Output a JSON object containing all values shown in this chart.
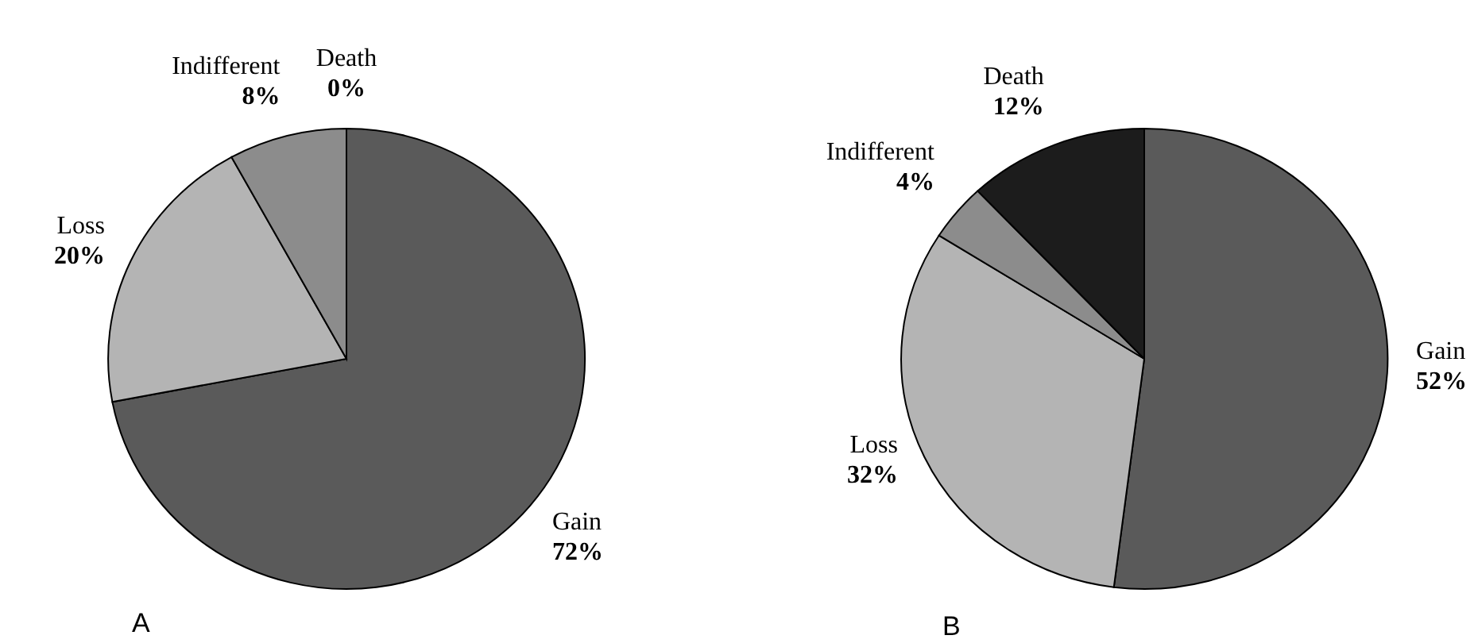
{
  "chart_data": [
    {
      "type": "pie",
      "title": "A",
      "categories": [
        "Gain",
        "Loss",
        "Indifferent",
        "Death"
      ],
      "values": [
        72,
        20,
        8,
        0
      ],
      "value_labels": [
        "72%",
        "20%",
        "8%",
        "0%"
      ],
      "colors": [
        "#5a5a5a",
        "#b4b4b4",
        "#8c8c8c",
        "#1c1c1c"
      ]
    },
    {
      "type": "pie",
      "title": "B",
      "categories": [
        "Gain",
        "Loss",
        "Indifferent",
        "Death"
      ],
      "values": [
        52,
        32,
        4,
        12
      ],
      "value_labels": [
        "52%",
        "32%",
        "4%",
        "12%"
      ],
      "colors": [
        "#5a5a5a",
        "#b4b4b4",
        "#8c8c8c",
        "#1c1c1c"
      ]
    }
  ]
}
